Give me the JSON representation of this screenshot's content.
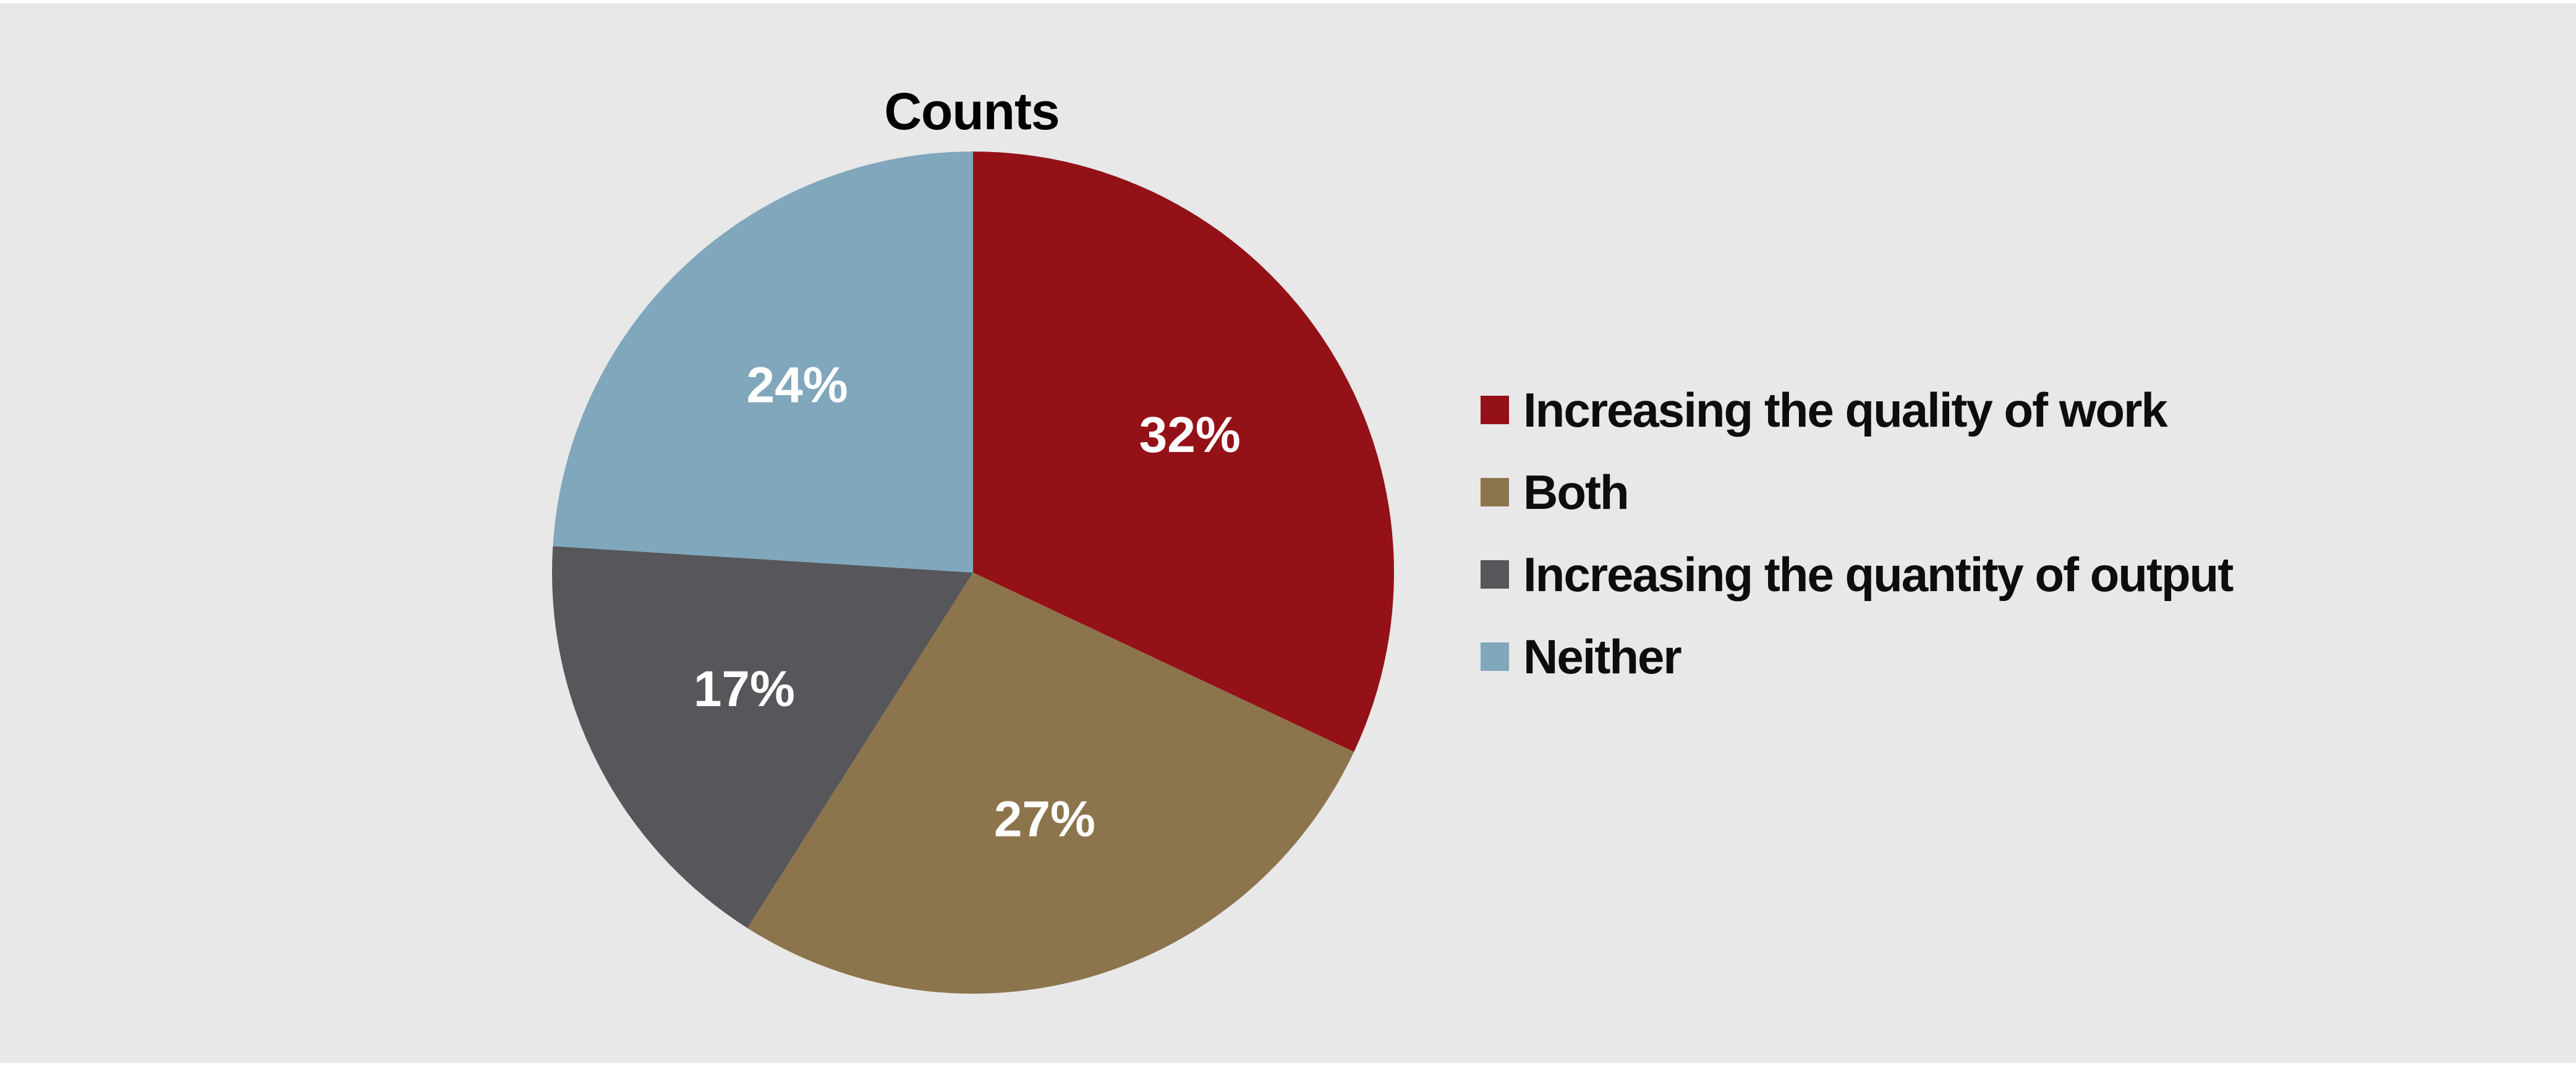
{
  "page": {
    "background_color": "#e8e8e8",
    "edge_strip_color": "#ffffff"
  },
  "chart_data": {
    "type": "pie",
    "title": "Counts",
    "categories": [
      "Increasing the quality of work",
      "Both",
      "Increasing the quantity of output",
      "Neither"
    ],
    "values": [
      32,
      27,
      17,
      24
    ],
    "slice_labels": [
      "32%",
      "27%",
      "17%",
      "24%"
    ],
    "colors": [
      "#941117",
      "#8C744C",
      "#57565A",
      "#80A7BC"
    ],
    "start_angle": "12 o'clock",
    "direction": "clockwise",
    "label_radius_fraction": 0.61,
    "label_color": "#ffffff",
    "title_color": "#000000",
    "legend_position": "right",
    "legend_text_color": "#0d0d0d",
    "legend_marker": "square"
  }
}
